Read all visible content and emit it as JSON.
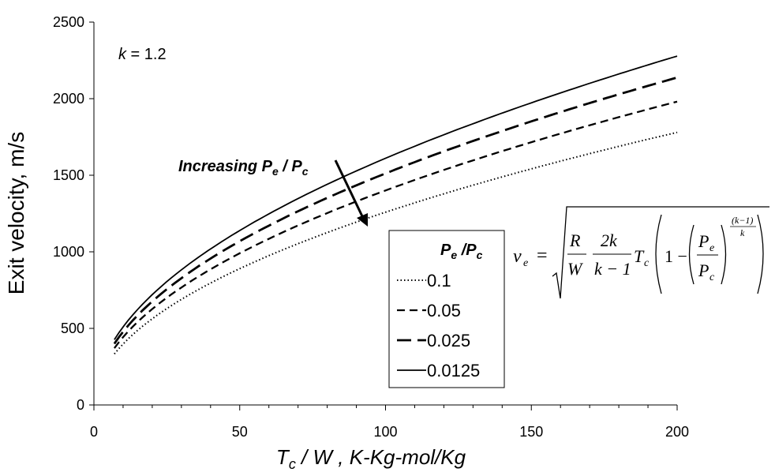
{
  "chart_data": {
    "type": "line",
    "title": "",
    "xlabel_main": "T",
    "xlabel_sub": "c",
    "xlabel_rest": " / W , K-Kg-mol/Kg",
    "ylabel": "Exit velocity, m/s",
    "xlim": [
      0,
      200
    ],
    "ylim": [
      0,
      2500
    ],
    "x_ticks": [
      "0",
      "50",
      "100",
      "150",
      "200"
    ],
    "y_ticks": [
      "0",
      "500",
      "1000",
      "1500",
      "2000",
      "2500"
    ],
    "annotation_k": {
      "italic": "k",
      "rest": " = 1.2"
    },
    "arrow_label": {
      "text": "Increasing P",
      "sub1": "e",
      "mid": " / P",
      "sub2": "c"
    },
    "legend": {
      "title_main": "P",
      "title_sub1": "e",
      "title_mid": " /P",
      "title_sub2": "c",
      "placement": "center-right"
    },
    "series": [
      {
        "name": "0.1",
        "dash": "dotted",
        "x": [
          7,
          10,
          20,
          50,
          100,
          150,
          200
        ],
        "values": [
          333,
          398,
          563,
          890,
          1259,
          1542,
          1780
        ]
      },
      {
        "name": "0.05",
        "dash": "short-dash",
        "x": [
          7,
          10,
          20,
          50,
          100,
          150,
          200
        ],
        "values": [
          370,
          443,
          627,
          991,
          1401,
          1716,
          1981
        ]
      },
      {
        "name": "0.025",
        "dash": "long-dash",
        "x": [
          7,
          10,
          20,
          50,
          100,
          150,
          200
        ],
        "values": [
          400,
          478,
          676,
          1069,
          1512,
          1852,
          2138
        ]
      },
      {
        "name": "0.0125",
        "dash": "solid",
        "x": [
          7,
          10,
          20,
          50,
          100,
          150,
          200
        ],
        "values": [
          426,
          509,
          720,
          1139,
          1611,
          1973,
          2278
        ]
      }
    ]
  },
  "equation": {
    "lhs": "v",
    "lhs_sub": "e",
    "equals": "=",
    "R": "R",
    "W": "W",
    "two_k": "2k",
    "k_minus_1": "k − 1",
    "T": "T",
    "T_sub": "c",
    "one_minus": "1 −",
    "Pe": "P",
    "Pe_sub": "e",
    "Pc": "P",
    "Pc_sub": "c",
    "exp_num": "(k−1)",
    "exp_den": "k"
  }
}
